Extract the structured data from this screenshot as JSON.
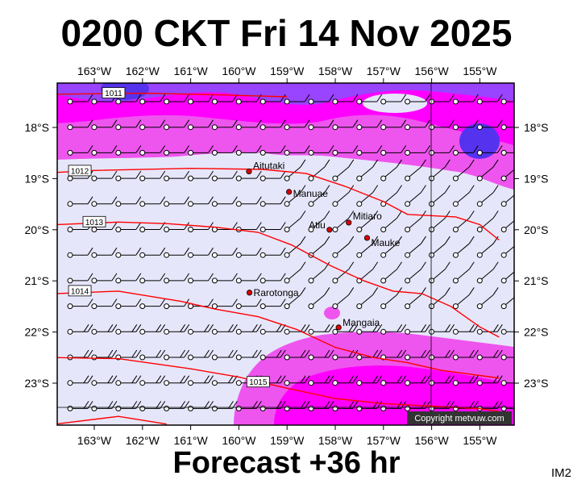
{
  "title": "0200 CKT Fri 14 Nov 2025",
  "footer": "Forecast +36 hr",
  "code": "IM2",
  "copyright": "Copyright metvuw.com",
  "lon_ticks": [
    "163°W",
    "162°W",
    "161°W",
    "160°W",
    "159°W",
    "158°W",
    "157°W",
    "156°W",
    "155°W"
  ],
  "lat_ticks": [
    "18°S",
    "19°S",
    "20°S",
    "21°S",
    "22°S",
    "23°S"
  ],
  "places": [
    {
      "name": "Aitutaki",
      "lon": -159.79,
      "lat": -18.86
    },
    {
      "name": "Manuae",
      "lon": -158.96,
      "lat": -19.26
    },
    {
      "name": "Mitiaro",
      "lon": -157.72,
      "lat": -19.86
    },
    {
      "name": "Atiu",
      "lon": -158.12,
      "lat": -20.0
    },
    {
      "name": "Mauke",
      "lon": -157.34,
      "lat": -20.16
    },
    {
      "name": "Rarotonga",
      "lon": -159.78,
      "lat": -21.23
    },
    {
      "name": "Mangaia",
      "lon": -157.93,
      "lat": -21.91
    }
  ],
  "isobars": [
    {
      "label": "1011",
      "label_lon": -162.6,
      "label_lat": -17.33,
      "points": [
        [
          -163.8,
          -17.35
        ],
        [
          -162.0,
          -17.33
        ],
        [
          -160.5,
          -17.36
        ],
        [
          -159.0,
          -17.4
        ]
      ]
    },
    {
      "label": "1012",
      "label_lon": -163.3,
      "label_lat": -18.85,
      "points": [
        [
          -163.8,
          -18.88
        ],
        [
          -163.0,
          -18.84
        ],
        [
          -161.0,
          -18.8
        ],
        [
          -159.5,
          -18.82
        ],
        [
          -158.6,
          -18.9
        ],
        [
          -157.8,
          -19.15
        ],
        [
          -157.0,
          -19.45
        ],
        [
          -156.5,
          -19.7
        ],
        [
          -155.5,
          -19.75
        ],
        [
          -155.0,
          -19.9
        ],
        [
          -154.6,
          -20.2
        ]
      ]
    },
    {
      "label": "1013",
      "label_lon": -163.0,
      "label_lat": -19.85,
      "points": [
        [
          -163.8,
          -19.9
        ],
        [
          -162.5,
          -19.85
        ],
        [
          -161.5,
          -19.88
        ],
        [
          -160.5,
          -19.95
        ],
        [
          -159.6,
          -20.05
        ],
        [
          -158.9,
          -20.3
        ],
        [
          -158.1,
          -20.7
        ],
        [
          -157.4,
          -21.0
        ],
        [
          -156.8,
          -21.2
        ],
        [
          -156.2,
          -21.25
        ],
        [
          -155.6,
          -21.5
        ],
        [
          -155.0,
          -21.9
        ],
        [
          -154.6,
          -22.1
        ]
      ]
    },
    {
      "label": "1014",
      "label_lon": -163.3,
      "label_lat": -21.2,
      "points": [
        [
          -163.8,
          -21.25
        ],
        [
          -162.5,
          -21.2
        ],
        [
          -161.2,
          -21.4
        ],
        [
          -160.5,
          -21.55
        ],
        [
          -159.6,
          -21.7
        ],
        [
          -158.8,
          -21.95
        ],
        [
          -158.0,
          -22.3
        ],
        [
          -157.2,
          -22.5
        ],
        [
          -156.5,
          -22.6
        ],
        [
          -155.8,
          -22.75
        ],
        [
          -155.0,
          -22.85
        ],
        [
          -154.6,
          -22.9
        ]
      ]
    },
    {
      "label": "1015",
      "label_lon": -159.6,
      "label_lat": -22.98,
      "points": [
        [
          -163.8,
          -22.5
        ],
        [
          -162.5,
          -22.52
        ],
        [
          -161.0,
          -22.72
        ],
        [
          -160.0,
          -22.88
        ],
        [
          -159.0,
          -23.1
        ],
        [
          -158.0,
          -23.3
        ],
        [
          -157.0,
          -23.4
        ],
        [
          -156.0,
          -23.45
        ],
        [
          -155.0,
          -23.5
        ],
        [
          -154.6,
          -23.55
        ]
      ]
    },
    {
      "label": "",
      "label_lon": 0,
      "label_lat": 0,
      "points": [
        [
          -163.8,
          -23.8
        ],
        [
          -162.5,
          -23.65
        ],
        [
          -161.5,
          -23.8
        ]
      ]
    }
  ],
  "legend_colors": {
    "calm": "#e6e6fa",
    "moderate": "#ee66ee",
    "strong": "#ff00ff",
    "stronger": "#9933ff",
    "strongest": "#5533ee"
  }
}
